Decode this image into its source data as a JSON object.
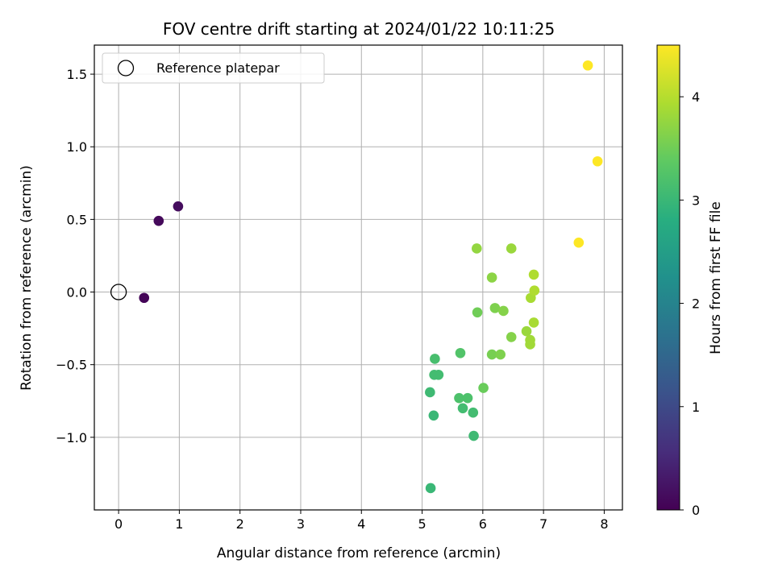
{
  "chart_data": {
    "type": "scatter",
    "title": "FOV centre drift starting at 2024/01/22 10:11:25",
    "xlabel": "Angular distance from reference (arcmin)",
    "ylabel": "Rotation from reference (arcmin)",
    "xlim": [
      -0.4,
      8.3
    ],
    "ylim": [
      -1.5,
      1.7
    ],
    "xticks": [
      0,
      1,
      2,
      3,
      4,
      5,
      6,
      7,
      8
    ],
    "yticks": [
      -1.0,
      -0.5,
      0.0,
      0.5,
      1.0,
      1.5
    ],
    "xtick_labels": [
      "0",
      "1",
      "2",
      "3",
      "4",
      "5",
      "6",
      "7",
      "8"
    ],
    "ytick_labels": [
      "−1.0",
      "−0.5",
      "0.0",
      "0.5",
      "1.0",
      "1.5"
    ],
    "grid": true,
    "colormap": "viridis",
    "colorbar": {
      "label": "Hours from first FF file",
      "range": [
        0,
        4.5
      ],
      "ticks": [
        0,
        1,
        2,
        3,
        4
      ],
      "tick_labels": [
        "0",
        "1",
        "2",
        "3",
        "4"
      ]
    },
    "legend": {
      "placement": "top-left",
      "entries": [
        {
          "label": "Reference platepar",
          "marker": "open-circle",
          "x": 0,
          "y": 0
        }
      ]
    },
    "points": [
      {
        "x": 0.42,
        "y": -0.04,
        "hours": 0.05
      },
      {
        "x": 0.66,
        "y": 0.49,
        "hours": 0.1
      },
      {
        "x": 0.98,
        "y": 0.59,
        "hours": 0.15
      },
      {
        "x": 5.14,
        "y": -1.35,
        "hours": 3.0
      },
      {
        "x": 5.85,
        "y": -0.99,
        "hours": 3.05
      },
      {
        "x": 5.19,
        "y": -0.85,
        "hours": 3.0
      },
      {
        "x": 5.84,
        "y": -0.83,
        "hours": 3.1
      },
      {
        "x": 5.67,
        "y": -0.8,
        "hours": 3.1
      },
      {
        "x": 5.61,
        "y": -0.73,
        "hours": 3.2
      },
      {
        "x": 5.75,
        "y": -0.73,
        "hours": 3.2
      },
      {
        "x": 5.13,
        "y": -0.69,
        "hours": 3.05
      },
      {
        "x": 5.2,
        "y": -0.57,
        "hours": 3.1
      },
      {
        "x": 5.27,
        "y": -0.57,
        "hours": 3.1
      },
      {
        "x": 5.21,
        "y": -0.46,
        "hours": 3.15
      },
      {
        "x": 5.63,
        "y": -0.42,
        "hours": 3.25
      },
      {
        "x": 6.01,
        "y": -0.66,
        "hours": 3.45
      },
      {
        "x": 6.15,
        "y": -0.43,
        "hours": 3.55
      },
      {
        "x": 6.29,
        "y": -0.43,
        "hours": 3.6
      },
      {
        "x": 5.91,
        "y": -0.14,
        "hours": 3.5
      },
      {
        "x": 6.2,
        "y": -0.11,
        "hours": 3.6
      },
      {
        "x": 6.34,
        "y": -0.13,
        "hours": 3.65
      },
      {
        "x": 6.47,
        "y": -0.31,
        "hours": 3.65
      },
      {
        "x": 6.15,
        "y": 0.1,
        "hours": 3.7
      },
      {
        "x": 5.9,
        "y": 0.3,
        "hours": 3.75
      },
      {
        "x": 6.47,
        "y": 0.3,
        "hours": 3.8
      },
      {
        "x": 6.72,
        "y": -0.27,
        "hours": 3.8
      },
      {
        "x": 6.78,
        "y": -0.33,
        "hours": 3.85
      },
      {
        "x": 6.78,
        "y": -0.36,
        "hours": 3.85
      },
      {
        "x": 6.84,
        "y": -0.21,
        "hours": 3.9
      },
      {
        "x": 6.79,
        "y": -0.04,
        "hours": 3.9
      },
      {
        "x": 6.85,
        "y": 0.01,
        "hours": 3.95
      },
      {
        "x": 6.84,
        "y": 0.12,
        "hours": 3.95
      },
      {
        "x": 7.58,
        "y": 0.34,
        "hours": 4.5
      },
      {
        "x": 7.73,
        "y": 1.56,
        "hours": 4.5
      },
      {
        "x": 7.89,
        "y": 0.9,
        "hours": 4.5
      }
    ]
  }
}
